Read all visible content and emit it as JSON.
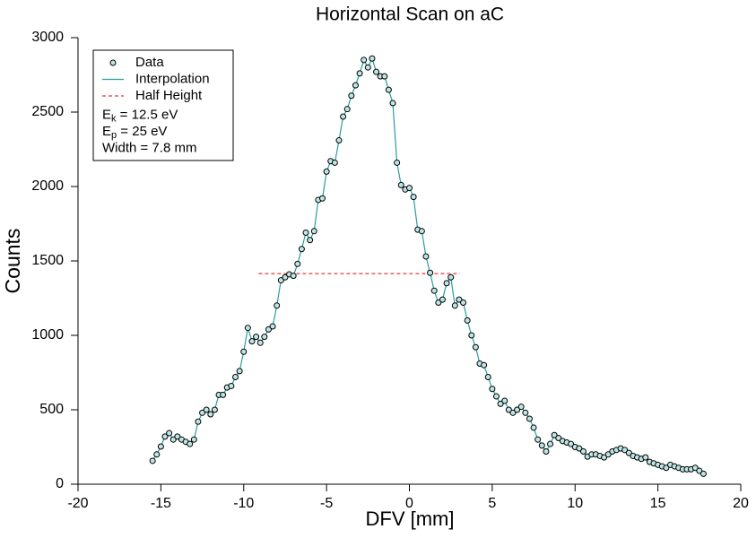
{
  "chart_data": {
    "type": "scatter",
    "title": "Horizontal Scan on aC",
    "x_label": "DFV [mm]",
    "y_label": "Counts",
    "xlim": [
      -20,
      20
    ],
    "xticks": [
      -20,
      -15,
      -10,
      -5,
      0,
      5,
      10,
      15,
      20
    ],
    "ylim": [
      0,
      3000
    ],
    "yticks": [
      0,
      500,
      1000,
      1500,
      2000,
      2500,
      3000
    ],
    "grid": false,
    "legend": "upper left",
    "x": [
      -15.5,
      -15.25,
      -15,
      -14.75,
      -14.5,
      -14.25,
      -14,
      -13.75,
      -13.5,
      -13.25,
      -13,
      -12.75,
      -12.5,
      -12.25,
      -12,
      -11.75,
      -11.5,
      -11.25,
      -11,
      -10.75,
      -10.5,
      -10.25,
      -10,
      -9.75,
      -9.5,
      -9.25,
      -9,
      -8.75,
      -8.5,
      -8.25,
      -8,
      -7.75,
      -7.5,
      -7.25,
      -7,
      -6.75,
      -6.5,
      -6.25,
      -6,
      -5.75,
      -5.5,
      -5.25,
      -5,
      -4.75,
      -4.5,
      -4.25,
      -4,
      -3.75,
      -3.5,
      -3.25,
      -3,
      -2.75,
      -2.5,
      -2.25,
      -2,
      -1.75,
      -1.5,
      -1.25,
      -1,
      -0.75,
      -0.5,
      -0.25,
      0,
      0.25,
      0.5,
      0.75,
      1,
      1.25,
      1.5,
      1.75,
      2,
      2.25,
      2.5,
      2.75,
      3,
      3.25,
      3.5,
      3.75,
      4,
      4.25,
      4.5,
      4.75,
      5,
      5.25,
      5.5,
      5.75,
      6,
      6.25,
      6.5,
      6.75,
      7,
      7.25,
      7.5,
      7.75,
      8,
      8.25,
      8.5,
      8.75,
      9,
      9.25,
      9.5,
      9.75,
      10,
      10.25,
      10.5,
      10.75,
      11,
      11.25,
      11.5,
      11.75,
      12,
      12.25,
      12.5,
      12.75,
      13,
      13.25,
      13.5,
      13.75,
      14,
      14.25,
      14.5,
      14.75,
      15,
      15.25,
      15.5,
      15.75,
      16,
      16.25,
      16.5,
      16.75,
      17,
      17.25,
      17.5,
      17.75
    ],
    "series": [
      {
        "name": "Data",
        "color": "#000000",
        "fill": "#bfe6e6",
        "style": "marker",
        "values": [
          157,
          200,
          253,
          320,
          343,
          300,
          320,
          300,
          285,
          270,
          300,
          420,
          480,
          500,
          470,
          500,
          600,
          600,
          650,
          660,
          720,
          760,
          890,
          1050,
          960,
          990,
          950,
          990,
          1040,
          1060,
          1200,
          1370,
          1390,
          1410,
          1400,
          1480,
          1580,
          1690,
          1640,
          1700,
          1910,
          1920,
          2100,
          2170,
          2160,
          2310,
          2470,
          2520,
          2610,
          2680,
          2760,
          2850,
          2800,
          2860,
          2770,
          2740,
          2740,
          2650,
          2560,
          2160,
          2010,
          1980,
          1990,
          1930,
          1710,
          1700,
          1530,
          1420,
          1300,
          1220,
          1240,
          1350,
          1390,
          1200,
          1240,
          1220,
          1100,
          1000,
          920,
          810,
          800,
          720,
          640,
          590,
          540,
          560,
          500,
          480,
          500,
          520,
          480,
          440,
          380,
          300,
          260,
          220,
          270,
          330,
          310,
          290,
          280,
          270,
          250,
          240,
          220,
          185,
          200,
          200,
          190,
          180,
          200,
          220,
          230,
          240,
          230,
          210,
          190,
          180,
          170,
          180,
          150,
          140,
          130,
          120,
          110,
          130,
          120,
          110,
          100,
          100,
          100,
          110,
          90,
          70
        ]
      },
      {
        "name": "Interpolation",
        "color": "#2a9d9d",
        "style": "line",
        "values": [
          157,
          200,
          253,
          320,
          343,
          300,
          320,
          300,
          285,
          270,
          300,
          420,
          480,
          500,
          470,
          500,
          600,
          600,
          650,
          660,
          720,
          760,
          890,
          1050,
          960,
          990,
          950,
          990,
          1040,
          1060,
          1200,
          1370,
          1390,
          1410,
          1400,
          1480,
          1580,
          1690,
          1640,
          1700,
          1910,
          1920,
          2100,
          2170,
          2160,
          2310,
          2470,
          2520,
          2610,
          2680,
          2760,
          2850,
          2800,
          2860,
          2770,
          2740,
          2740,
          2650,
          2560,
          2160,
          2010,
          1980,
          1990,
          1930,
          1710,
          1700,
          1530,
          1420,
          1300,
          1220,
          1240,
          1350,
          1390,
          1200,
          1240,
          1220,
          1100,
          1000,
          920,
          810,
          800,
          720,
          640,
          590,
          540,
          560,
          500,
          480,
          500,
          520,
          480,
          440,
          380,
          300,
          260,
          220,
          270,
          330,
          310,
          290,
          280,
          270,
          250,
          240,
          220,
          185,
          200,
          200,
          190,
          180,
          200,
          220,
          230,
          240,
          230,
          210,
          190,
          180,
          170,
          180,
          150,
          140,
          130,
          120,
          110,
          130,
          120,
          110,
          100,
          100,
          100,
          110,
          90,
          70
        ]
      },
      {
        "name": "Half Height",
        "color": "#e03b3b",
        "style": "dashed",
        "x": [
          -9.1,
          3.05
        ],
        "values": [
          1415,
          1415
        ]
      }
    ],
    "annotations": [
      {
        "main": "E",
        "sub": "k",
        "after": " = 12.5 eV"
      },
      {
        "main": "E",
        "sub": "p",
        "after": " = 25 eV"
      },
      {
        "main": "Width = 7.8 mm"
      }
    ]
  }
}
